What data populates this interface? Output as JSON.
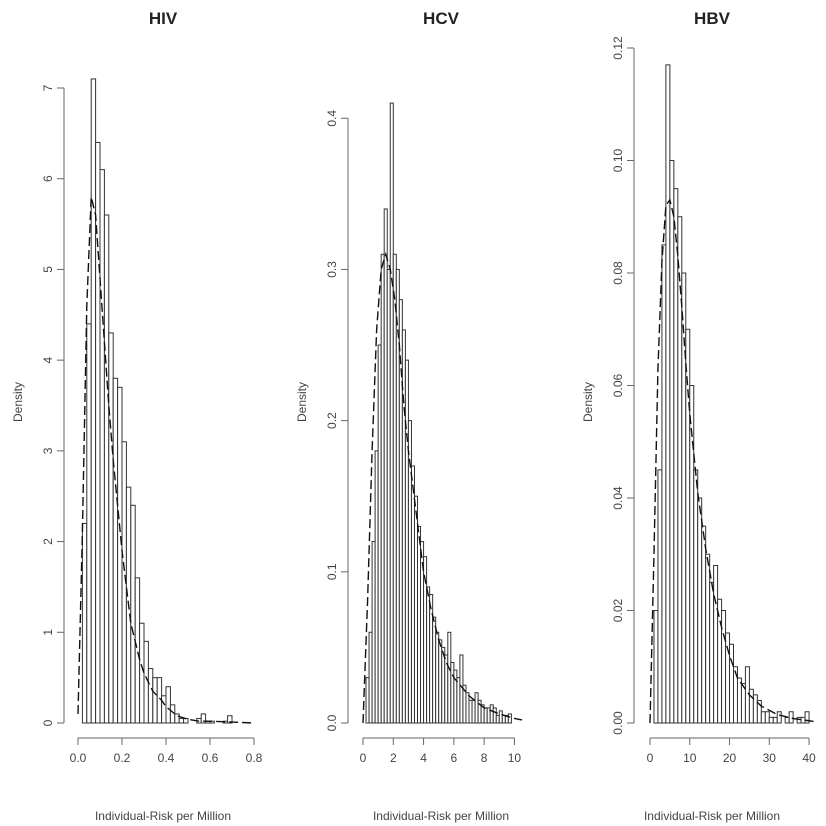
{
  "chart_data": [
    {
      "type": "bar",
      "title": "HIV",
      "xlabel": "Individual-Risk per Million",
      "ylabel": "Density",
      "xlim": [
        0,
        0.8
      ],
      "ylim": [
        0,
        7
      ],
      "x_ticks": [
        0.0,
        0.2,
        0.4,
        0.6,
        0.8
      ],
      "x_tick_labels": [
        "0.0",
        "0.2",
        "0.4",
        "0.6",
        "0.8"
      ],
      "y_ticks": [
        0,
        1,
        2,
        3,
        4,
        5,
        6,
        7
      ],
      "y_tick_labels": [
        "0",
        "1",
        "2",
        "3",
        "4",
        "5",
        "6",
        "7"
      ],
      "bin_width": 0.02,
      "bins_start": 0.02,
      "values": [
        2.2,
        4.4,
        7.1,
        6.4,
        6.1,
        5.6,
        4.3,
        3.8,
        3.7,
        3.1,
        2.6,
        2.4,
        1.6,
        1.1,
        0.9,
        0.6,
        0.5,
        0.5,
        0.3,
        0.4,
        0.2,
        0.1,
        0.05,
        0.05,
        0.0,
        0.0,
        0.05,
        0.1,
        0.02,
        0.02,
        0.0,
        0.0,
        0.02,
        0.08
      ],
      "density_curve": {
        "x": [
          0.0,
          0.02,
          0.04,
          0.06,
          0.08,
          0.1,
          0.12,
          0.14,
          0.16,
          0.18,
          0.2,
          0.22,
          0.24,
          0.26,
          0.28,
          0.3,
          0.32,
          0.34,
          0.36,
          0.38,
          0.4,
          0.45,
          0.5,
          0.55,
          0.6,
          0.7,
          0.8
        ],
        "y": [
          0.1,
          2.1,
          4.6,
          5.8,
          5.6,
          4.9,
          4.2,
          3.5,
          2.9,
          2.4,
          1.9,
          1.5,
          1.1,
          0.9,
          0.7,
          0.55,
          0.45,
          0.35,
          0.3,
          0.25,
          0.18,
          0.08,
          0.04,
          0.02,
          0.02,
          0.01,
          0.0
        ]
      }
    },
    {
      "type": "bar",
      "title": "HCV",
      "xlabel": "Individual-Risk per Million",
      "ylabel": "Density",
      "xlim": [
        0,
        10.5
      ],
      "ylim": [
        0,
        0.42
      ],
      "x_ticks": [
        0,
        2,
        4,
        6,
        8,
        10
      ],
      "x_tick_labels": [
        "0",
        "2",
        "4",
        "6",
        "8",
        "10"
      ],
      "y_ticks": [
        0.0,
        0.1,
        0.2,
        0.3,
        0.4
      ],
      "y_tick_labels": [
        "0.0",
        "0.1",
        "0.2",
        "0.3",
        "0.4"
      ],
      "bin_width": 0.2,
      "bins_start": 0.2,
      "values": [
        0.03,
        0.06,
        0.12,
        0.18,
        0.25,
        0.31,
        0.34,
        0.3,
        0.41,
        0.31,
        0.3,
        0.28,
        0.26,
        0.24,
        0.2,
        0.17,
        0.15,
        0.13,
        0.12,
        0.11,
        0.09,
        0.085,
        0.07,
        0.06,
        0.055,
        0.05,
        0.045,
        0.06,
        0.04,
        0.035,
        0.03,
        0.045,
        0.025,
        0.02,
        0.015,
        0.015,
        0.02,
        0.015,
        0.012,
        0.01,
        0.01,
        0.012,
        0.01,
        0.005,
        0.008,
        0.005,
        0.005,
        0.006
      ],
      "density_curve": {
        "x": [
          0.0,
          0.3,
          0.6,
          0.9,
          1.2,
          1.5,
          1.8,
          2.1,
          2.4,
          2.7,
          3.0,
          3.5,
          4.0,
          4.5,
          5.0,
          5.5,
          6.0,
          7.0,
          8.0,
          9.0,
          10.0,
          10.5
        ],
        "y": [
          0.0,
          0.08,
          0.18,
          0.26,
          0.3,
          0.31,
          0.3,
          0.28,
          0.25,
          0.21,
          0.18,
          0.14,
          0.1,
          0.075,
          0.055,
          0.04,
          0.03,
          0.018,
          0.01,
          0.006,
          0.003,
          0.002
        ]
      }
    },
    {
      "type": "bar",
      "title": "HBV",
      "xlabel": "Individual-Risk per Million",
      "ylabel": "Density",
      "xlim": [
        0,
        42
      ],
      "ylim": [
        0,
        0.12
      ],
      "x_ticks": [
        0,
        10,
        20,
        30,
        40
      ],
      "x_tick_labels": [
        "0",
        "10",
        "20",
        "30",
        "40"
      ],
      "y_ticks": [
        0.0,
        0.02,
        0.04,
        0.06,
        0.08,
        0.1,
        0.12
      ],
      "y_tick_labels": [
        "0.00",
        "0.02",
        "0.04",
        "0.06",
        "0.08",
        "0.10",
        "0.12"
      ],
      "bin_width": 1,
      "bins_start": 1,
      "values": [
        0.02,
        0.045,
        0.085,
        0.117,
        0.1,
        0.095,
        0.09,
        0.08,
        0.07,
        0.06,
        0.045,
        0.04,
        0.035,
        0.03,
        0.025,
        0.028,
        0.022,
        0.02,
        0.016,
        0.014,
        0.01,
        0.008,
        0.007,
        0.01,
        0.006,
        0.005,
        0.004,
        0.002,
        0.002,
        0.001,
        0.001,
        0.002,
        0.0,
        0.001,
        0.002,
        0.0,
        0.001,
        0.001,
        0.002
      ],
      "density_curve": {
        "x": [
          0,
          1,
          2,
          3,
          4,
          5,
          6,
          7,
          8,
          9,
          10,
          12,
          14,
          16,
          18,
          20,
          22,
          25,
          28,
          32,
          36,
          40,
          42
        ],
        "y": [
          0.0,
          0.03,
          0.063,
          0.082,
          0.092,
          0.093,
          0.09,
          0.083,
          0.074,
          0.064,
          0.055,
          0.041,
          0.031,
          0.023,
          0.017,
          0.012,
          0.008,
          0.005,
          0.003,
          0.0015,
          0.0008,
          0.0004,
          0.0002
        ]
      }
    }
  ]
}
